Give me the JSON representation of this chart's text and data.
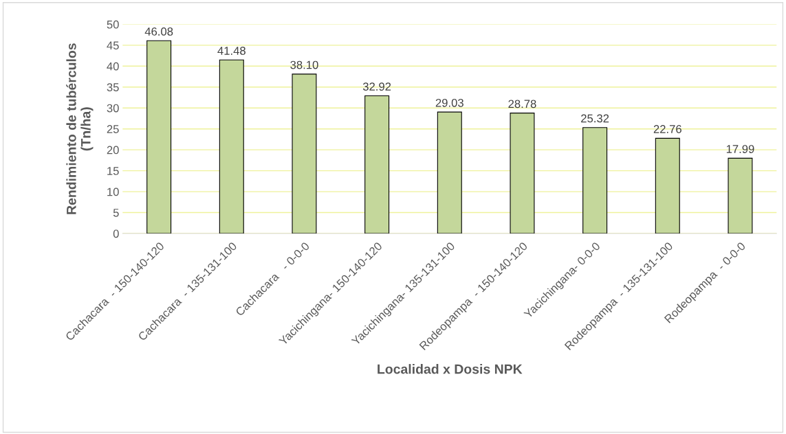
{
  "chart_data": {
    "type": "bar",
    "xlabel": "Localidad x Dosis NPK",
    "ylabel": "Rendimiento de tubérculos\n(Tn/ha)",
    "categories": [
      "Cachacara  - 150-140-120",
      "Cachacara  - 135-131-100",
      "Cachacara   - 0-0-0",
      "Yacichingana- 150-140-120",
      "Yacichingana- 135-131-100",
      "Rodeopampa  - 150-140-120",
      "Yacichingana- 0-0-0",
      "Rodeopampa  - 135-131-100",
      "Rodeopampa  - 0-0-0"
    ],
    "values": [
      46.08,
      41.48,
      38.1,
      32.92,
      29.03,
      28.78,
      25.32,
      22.76,
      17.99
    ],
    "value_labels": [
      "46.08",
      "41.48",
      "38.10",
      "32.92",
      "29.03",
      "28.78",
      "25.32",
      "22.76",
      "17.99"
    ],
    "color": "#c4d79b",
    "ylim": [
      0,
      50
    ],
    "yticks": [
      0,
      5,
      10,
      15,
      20,
      25,
      30,
      35,
      40,
      45,
      50
    ],
    "grid": "y"
  }
}
